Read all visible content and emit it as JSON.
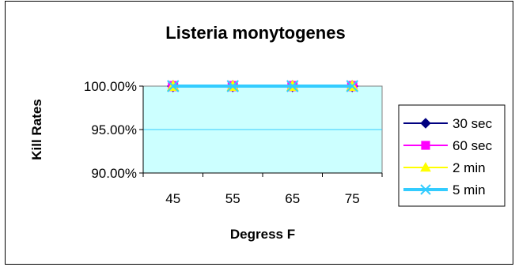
{
  "chart_data": {
    "type": "line",
    "title": "Listeria monytogenes",
    "xlabel": "Degress F",
    "ylabel": "Kill Rates",
    "categories": [
      "45",
      "55",
      "65",
      "75"
    ],
    "ylim": [
      0.9,
      1.0
    ],
    "yticks": [
      {
        "value": 1.0,
        "label": "100.00%"
      },
      {
        "value": 0.95,
        "label": "95.00%"
      },
      {
        "value": 0.9,
        "label": "90.00%"
      }
    ],
    "grid": "horizontal major gridlines",
    "legend_position": "right",
    "plot_background": "#ccffff",
    "gridline_color": "#33ccff",
    "series": [
      {
        "name": "30 sec",
        "values": [
          1.0,
          1.0,
          1.0,
          1.0
        ],
        "color": "#000080",
        "marker": "diamond"
      },
      {
        "name": "60 sec",
        "values": [
          1.0,
          1.0,
          1.0,
          1.0
        ],
        "color": "#ff00ff",
        "marker": "square"
      },
      {
        "name": "2 min",
        "values": [
          1.0,
          1.0,
          1.0,
          1.0
        ],
        "color": "#ffff00",
        "marker": "triangle"
      },
      {
        "name": "5 min",
        "values": [
          1.0,
          1.0,
          1.0,
          1.0
        ],
        "color": "#33ccff",
        "marker": "x"
      }
    ]
  }
}
